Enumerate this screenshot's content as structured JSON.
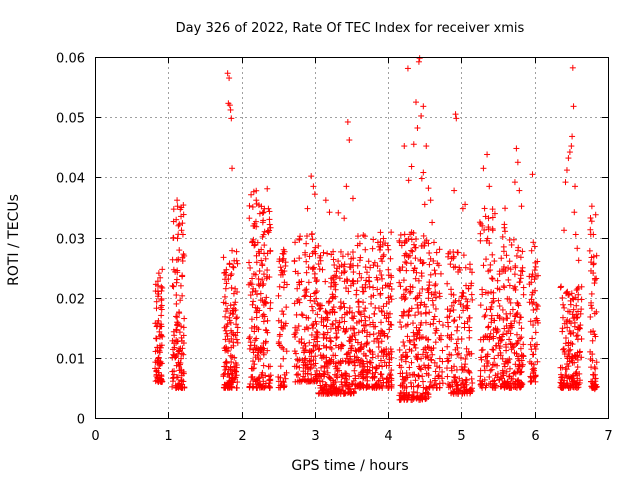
{
  "chart_data": {
    "type": "scatter",
    "title": "Day 326 of 2022, Rate Of TEC Index for receiver xmis",
    "xlabel": "GPS time / hours",
    "ylabel": "ROTI / TECUs",
    "xlim": [
      0,
      7
    ],
    "ylim": [
      0,
      0.06
    ],
    "xticks": [
      "0",
      "1",
      "2",
      "3",
      "4",
      "5",
      "6",
      "7"
    ],
    "yticks": [
      "0",
      "0.01",
      "0.02",
      "0.03",
      "0.04",
      "0.05",
      "0.06"
    ],
    "grid": true,
    "marker": "+",
    "color": "#ff0000",
    "clusters": [
      {
        "x": [
          0.82,
          0.92
        ],
        "y": [
          0.006,
          0.025
        ],
        "n": 90
      },
      {
        "x": [
          1.05,
          1.22
        ],
        "y": [
          0.005,
          0.036
        ],
        "n": 130
      },
      {
        "x": [
          1.75,
          1.95
        ],
        "y": [
          0.005,
          0.028
        ],
        "n": 140
      },
      {
        "x": [
          2.1,
          2.4
        ],
        "y": [
          0.005,
          0.038
        ],
        "n": 200
      },
      {
        "x": [
          2.5,
          2.62
        ],
        "y": [
          0.005,
          0.028
        ],
        "n": 60
      },
      {
        "x": [
          2.72,
          3.05
        ],
        "y": [
          0.006,
          0.031
        ],
        "n": 170
      },
      {
        "x": [
          3.05,
          3.55
        ],
        "y": [
          0.004,
          0.028
        ],
        "n": 330
      },
      {
        "x": [
          3.55,
          4.05
        ],
        "y": [
          0.005,
          0.031
        ],
        "n": 300
      },
      {
        "x": [
          4.15,
          4.55
        ],
        "y": [
          0.003,
          0.031
        ],
        "n": 260
      },
      {
        "x": [
          4.55,
          4.75
        ],
        "y": [
          0.005,
          0.03
        ],
        "n": 80
      },
      {
        "x": [
          4.8,
          5.15
        ],
        "y": [
          0.004,
          0.028
        ],
        "n": 170
      },
      {
        "x": [
          5.25,
          5.6
        ],
        "y": [
          0.005,
          0.035
        ],
        "n": 180
      },
      {
        "x": [
          5.6,
          5.85
        ],
        "y": [
          0.005,
          0.03
        ],
        "n": 150
      },
      {
        "x": [
          5.92,
          6.05
        ],
        "y": [
          0.006,
          0.03
        ],
        "n": 60
      },
      {
        "x": [
          6.35,
          6.65
        ],
        "y": [
          0.005,
          0.022
        ],
        "n": 170
      },
      {
        "x": [
          6.75,
          6.85
        ],
        "y": [
          0.005,
          0.035
        ],
        "n": 60
      }
    ],
    "points": [
      [
        1.81,
        0.0573
      ],
      [
        1.83,
        0.0565
      ],
      [
        1.84,
        0.052
      ],
      [
        1.86,
        0.0498
      ],
      [
        1.82,
        0.0523
      ],
      [
        1.87,
        0.0415
      ],
      [
        1.85,
        0.0512
      ],
      [
        1.12,
        0.0362
      ],
      [
        1.15,
        0.0322
      ],
      [
        1.18,
        0.0312
      ],
      [
        1.2,
        0.0305
      ],
      [
        2.3,
        0.0342
      ],
      [
        2.35,
        0.0381
      ],
      [
        2.2,
        0.0362
      ],
      [
        2.95,
        0.0402
      ],
      [
        2.98,
        0.0385
      ],
      [
        3.0,
        0.0372
      ],
      [
        2.9,
        0.0348
      ],
      [
        3.15,
        0.0362
      ],
      [
        3.2,
        0.0342
      ],
      [
        3.32,
        0.0341
      ],
      [
        3.45,
        0.0492
      ],
      [
        3.47,
        0.0462
      ],
      [
        3.43,
        0.0385
      ],
      [
        3.52,
        0.0365
      ],
      [
        3.4,
        0.0332
      ],
      [
        4.27,
        0.0581
      ],
      [
        4.38,
        0.0525
      ],
      [
        4.42,
        0.0592
      ],
      [
        4.43,
        0.0598
      ],
      [
        4.48,
        0.0518
      ],
      [
        4.45,
        0.0502
      ],
      [
        4.4,
        0.0482
      ],
      [
        4.35,
        0.0455
      ],
      [
        4.32,
        0.0418
      ],
      [
        4.28,
        0.0395
      ],
      [
        4.22,
        0.0452
      ],
      [
        4.48,
        0.0408
      ],
      [
        4.52,
        0.0452
      ],
      [
        4.55,
        0.0382
      ],
      [
        4.46,
        0.0398
      ],
      [
        4.5,
        0.0355
      ],
      [
        4.58,
        0.0362
      ],
      [
        4.6,
        0.0325
      ],
      [
        4.92,
        0.0505
      ],
      [
        4.93,
        0.0498
      ],
      [
        4.9,
        0.0378
      ],
      [
        5.05,
        0.0355
      ],
      [
        5.02,
        0.0348
      ],
      [
        5.3,
        0.0415
      ],
      [
        5.35,
        0.0438
      ],
      [
        5.38,
        0.0385
      ],
      [
        5.33,
        0.0335
      ],
      [
        5.37,
        0.0332
      ],
      [
        5.75,
        0.0448
      ],
      [
        5.77,
        0.0425
      ],
      [
        5.73,
        0.0392
      ],
      [
        5.79,
        0.0378
      ],
      [
        5.82,
        0.0352
      ],
      [
        5.97,
        0.0405
      ],
      [
        5.98,
        0.0292
      ],
      [
        6.0,
        0.0285
      ],
      [
        6.42,
        0.0392
      ],
      [
        6.44,
        0.0412
      ],
      [
        6.46,
        0.0432
      ],
      [
        6.48,
        0.0442
      ],
      [
        6.5,
        0.0452
      ],
      [
        6.52,
        0.0582
      ],
      [
        6.53,
        0.0518
      ],
      [
        6.51,
        0.0468
      ],
      [
        6.55,
        0.0385
      ],
      [
        6.54,
        0.0342
      ],
      [
        6.4,
        0.0312
      ],
      [
        6.56,
        0.0305
      ],
      [
        6.58,
        0.0282
      ],
      [
        6.6,
        0.0262
      ],
      [
        6.78,
        0.0352
      ],
      [
        6.8,
        0.0305
      ],
      [
        6.8,
        0.0255
      ],
      [
        6.82,
        0.0048
      ],
      [
        3.15,
        0.004
      ],
      [
        3.17,
        0.0042
      ],
      [
        4.55,
        0.0035
      ]
    ]
  }
}
